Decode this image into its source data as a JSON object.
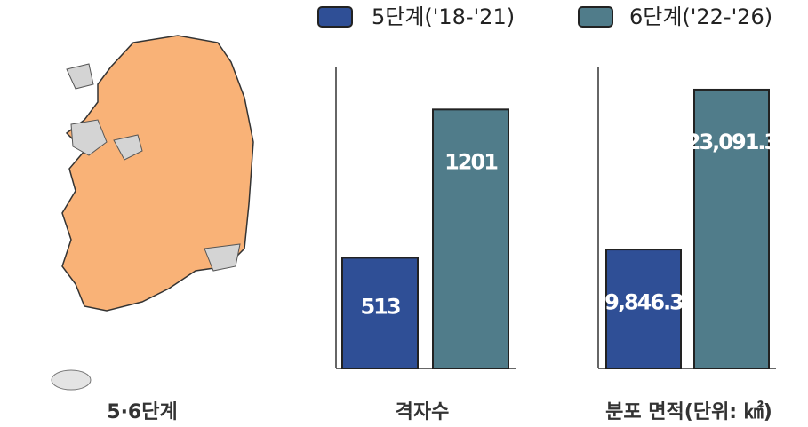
{
  "map": {
    "caption": "5·6단계"
  },
  "legend": [
    {
      "name": "5단계('18-'21)",
      "color": "#2f4f96"
    },
    {
      "name": "6단계('22-'26)",
      "color": "#507c8a"
    }
  ],
  "chart_data": [
    {
      "type": "bar",
      "title": "격자수",
      "values": [
        513,
        1201
      ],
      "ylim": [
        0,
        1400
      ]
    },
    {
      "type": "bar",
      "title": "분포 면적(단위: ㎢)",
      "values": [
        9846.3,
        23091.3
      ],
      "value_labels": [
        "9,846.3",
        "23,091.3"
      ],
      "ylim": [
        0,
        25000
      ]
    }
  ]
}
